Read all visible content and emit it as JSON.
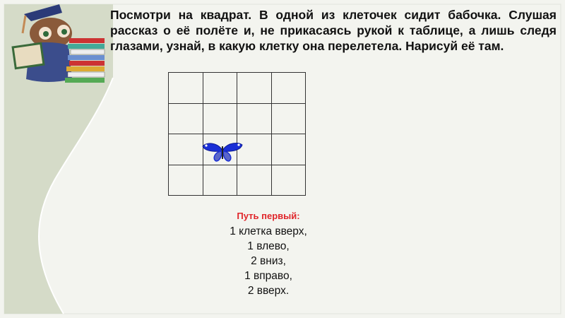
{
  "task_text": "Посмотри на квадрат. В одной из клеточек сидит бабочка. Слушая рассказ о её полёте и, не прикасаясь рукой к таблице, а лишь следя глазами, узнай, в какую клетку она перелетела. Нарисуй её там.",
  "grid": {
    "rows": 4,
    "columns": 4,
    "butterfly_cell": {
      "row": 3,
      "column": 2
    }
  },
  "path": {
    "title": "Путь первый:",
    "steps": [
      "1 клетка вверх,",
      "1 влево,",
      "2 вниз,",
      "1 вправо,",
      "2 вверх."
    ]
  },
  "colors": {
    "title_red": "#e0262b",
    "butterfly_blue": "#1a2fd6",
    "side_panel": "#d5dbc8"
  },
  "decoration": {
    "icon": "owl-teacher-with-books-icon"
  }
}
